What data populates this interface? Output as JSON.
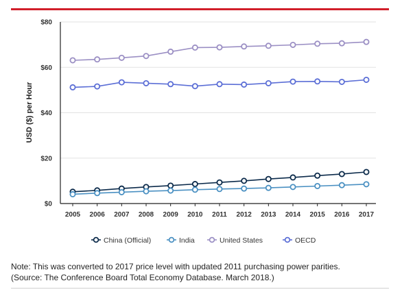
{
  "chart_data": {
    "type": "line",
    "ylabel": "USD ($) per Hour",
    "xlabel": "",
    "title": "",
    "ylim": [
      0,
      80
    ],
    "yticks": [
      0,
      20,
      40,
      60,
      80
    ],
    "ytick_labels": [
      "$0",
      "$20",
      "$40",
      "$60",
      "$80"
    ],
    "x": [
      "2005",
      "2006",
      "2007",
      "2008",
      "2009",
      "2010",
      "2011",
      "2012",
      "2013",
      "2014",
      "2015",
      "2016",
      "2017"
    ],
    "grid": "horizontal",
    "legend_position": "bottom",
    "series": [
      {
        "name": "China (Official)",
        "color": "#0b2a4a",
        "values": [
          5.2,
          5.8,
          6.6,
          7.3,
          7.9,
          8.6,
          9.3,
          10.0,
          10.8,
          11.5,
          12.3,
          13.0,
          13.9
        ]
      },
      {
        "name": "India",
        "color": "#4a90c2",
        "values": [
          4.1,
          4.6,
          5.0,
          5.4,
          5.7,
          6.1,
          6.4,
          6.6,
          6.9,
          7.3,
          7.7,
          8.1,
          8.5
        ]
      },
      {
        "name": "United States",
        "color": "#9b8fc4",
        "values": [
          63.1,
          63.5,
          64.2,
          65.0,
          66.9,
          68.7,
          68.8,
          69.2,
          69.5,
          69.9,
          70.4,
          70.6,
          71.2
        ]
      },
      {
        "name": "OECD",
        "color": "#5b6ed6",
        "values": [
          51.2,
          51.6,
          53.4,
          53.0,
          52.6,
          51.7,
          52.6,
          52.4,
          53.0,
          53.7,
          53.8,
          53.6,
          54.5
        ]
      }
    ]
  },
  "note": {
    "line1": "Note: This was converted to 2017 price level with updated 2011 purchasing power parities.",
    "line2": "(Source: The Conference Board Total Economy Database. March 2018.)"
  }
}
